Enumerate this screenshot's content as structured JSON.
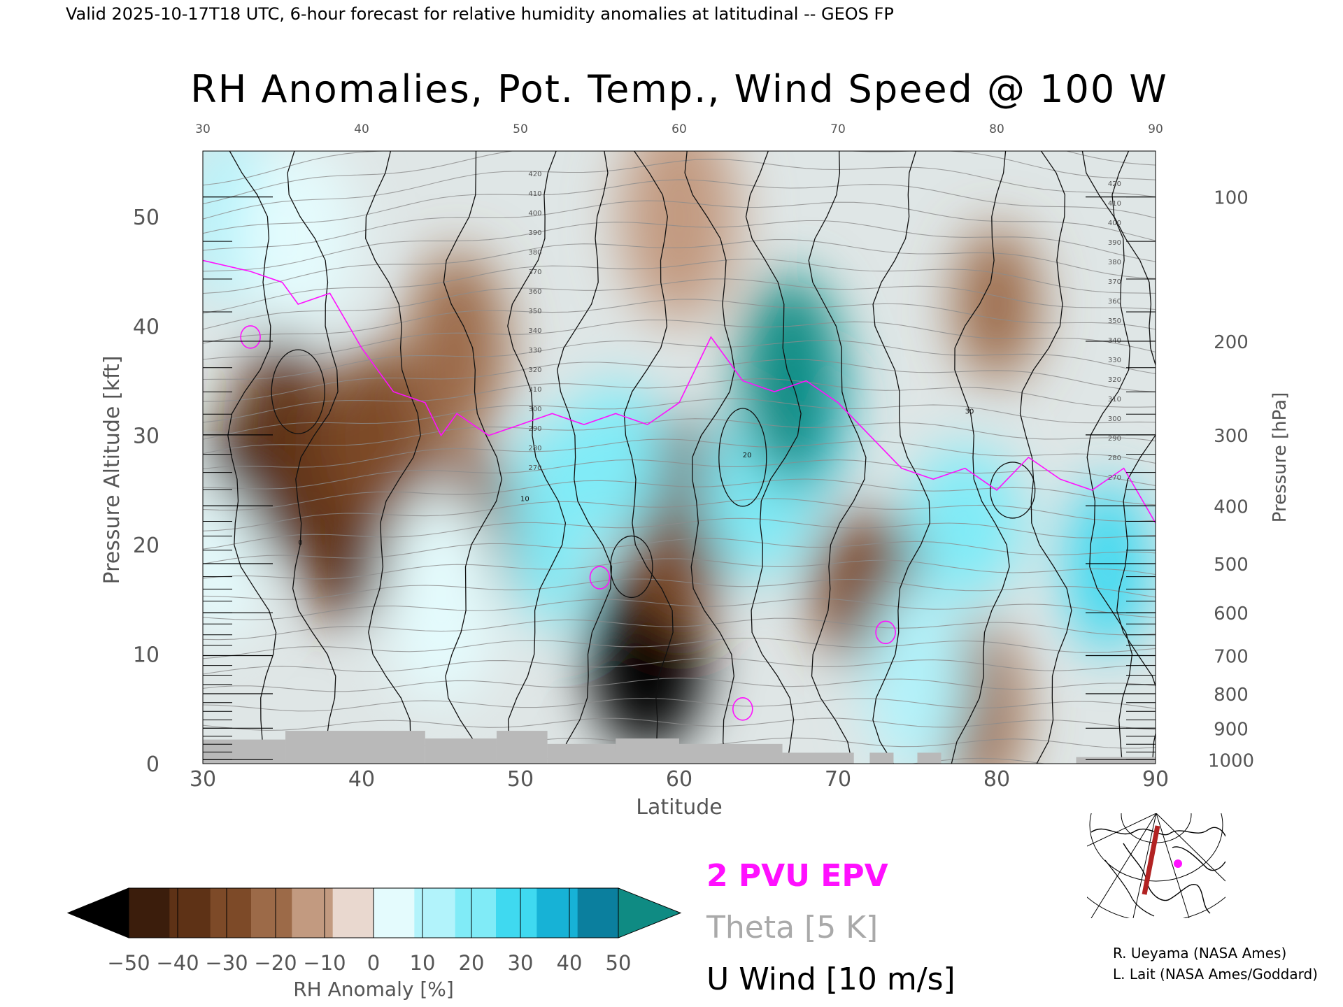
{
  "header": {
    "valid_line": "Valid 2025-10-17T18 UTC, 6-hour forecast for relative humidity anomalies at latitudinal -- GEOS FP",
    "title": "RH Anomalies, Pot. Temp., Wind Speed @ 100 W"
  },
  "chart_data": {
    "type": "heatmap",
    "xlabel": "Latitude",
    "ylabel": "Pressure Altitude [kft]",
    "ylabel_right": "Pressure [hPa]",
    "xlim": [
      30,
      90
    ],
    "ylim": [
      0,
      56
    ],
    "x_ticks": [
      "30",
      "40",
      "50",
      "60",
      "70",
      "80",
      "90"
    ],
    "x_ticks_top": [
      "30",
      "40",
      "50",
      "60",
      "70",
      "80",
      "90"
    ],
    "y_ticks": [
      "0",
      "10",
      "20",
      "30",
      "40",
      "50"
    ],
    "pressure_ticks": [
      "1000",
      "900",
      "800",
      "700",
      "600",
      "500",
      "400",
      "300",
      "200",
      "100"
    ],
    "colorbar": {
      "label": "RH Anomaly [%]",
      "ticks": [
        "-50",
        "-40",
        "-30",
        "-20",
        "-10",
        "0",
        "10",
        "20",
        "30",
        "40",
        "50"
      ],
      "colors": [
        "#000000",
        "#3b1d0c",
        "#5e3216",
        "#7d4a28",
        "#9c6a48",
        "#c29a80",
        "#e9d8cf",
        "#e4fbfd",
        "#b2f3fb",
        "#80ebf7",
        "#3fd9f0",
        "#17b2d6",
        "#0b7f9e",
        "#0f8b83"
      ]
    },
    "legend": [
      {
        "name": "2 PVU EPV",
        "color": "#ff10ff"
      },
      {
        "name": "Theta [5 K]",
        "color": "#a9a9a9"
      },
      {
        "name": "U Wind [10 m/s]",
        "color": "#000000"
      }
    ],
    "regions": [
      {
        "lat": 38,
        "kft": 24,
        "anom": -50
      },
      {
        "lat": 34,
        "kft": 27,
        "anom": -50
      },
      {
        "lat": 58,
        "kft": 10,
        "anom": -50
      },
      {
        "lat": 35,
        "kft": 30,
        "anom": -40
      },
      {
        "lat": 39,
        "kft": 20,
        "anom": -38
      },
      {
        "lat": 41,
        "kft": 30,
        "anom": -30
      },
      {
        "lat": 47,
        "kft": 20,
        "anom": -30
      },
      {
        "lat": 60,
        "kft": 22,
        "anom": -25
      },
      {
        "lat": 72,
        "kft": 16,
        "anom": -28
      },
      {
        "lat": 79,
        "kft": 5,
        "anom": -15
      },
      {
        "lat": 46,
        "kft": 38,
        "anom": -12
      },
      {
        "lat": 60,
        "kft": 50,
        "anom": -8
      },
      {
        "lat": 80,
        "kft": 42,
        "anom": -12
      },
      {
        "lat": 32,
        "kft": 50,
        "anom": 25
      },
      {
        "lat": 36,
        "kft": 48,
        "anom": 15
      },
      {
        "lat": 52,
        "kft": 22,
        "anom": 30
      },
      {
        "lat": 56,
        "kft": 28,
        "anom": 35
      },
      {
        "lat": 65,
        "kft": 25,
        "anom": 38
      },
      {
        "lat": 68,
        "kft": 33,
        "anom": 42
      },
      {
        "lat": 67,
        "kft": 35,
        "anom": 55
      },
      {
        "lat": 78,
        "kft": 22,
        "anom": 30
      },
      {
        "lat": 87,
        "kft": 18,
        "anom": 42
      },
      {
        "lat": 75,
        "kft": 8,
        "anom": 22
      },
      {
        "lat": 45,
        "kft": 15,
        "anom": 18
      },
      {
        "lat": 31,
        "kft": 18,
        "anom": 12
      }
    ],
    "theta_labels": [
      "420",
      "410",
      "400",
      "390",
      "380",
      "370",
      "360",
      "350",
      "340",
      "330",
      "320",
      "310",
      "300",
      "290",
      "280",
      "270"
    ],
    "wind_labels": [
      "0",
      "10",
      "20",
      "30"
    ]
  },
  "map_inset": {
    "section_color": "#b22222",
    "marker_color": "#ff10ff"
  },
  "credits": {
    "line1": "R. Ueyama (NASA Ames)",
    "line2": "L. Lait (NASA Ames/Goddard)"
  }
}
